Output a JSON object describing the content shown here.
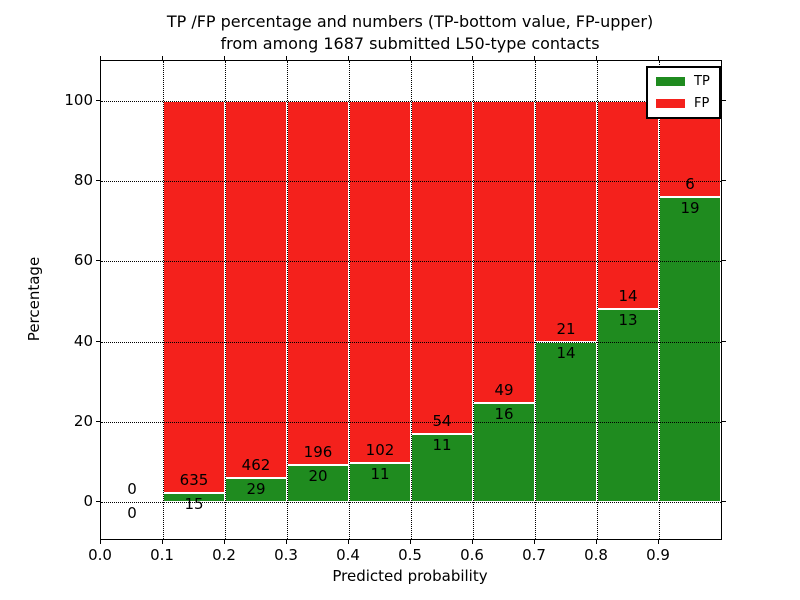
{
  "title": {
    "line1": "TP /FP percentage and numbers (TP-bottom value, FP-upper)",
    "line2": "from among 1687 submitted L50-type contacts"
  },
  "axes": {
    "xlabel": "Predicted probability",
    "ylabel": "Percentage",
    "x_tick_labels": [
      "0.0",
      "0.1",
      "0.2",
      "0.3",
      "0.4",
      "0.5",
      "0.6",
      "0.7",
      "0.8",
      "0.9"
    ],
    "x_tick_values": [
      0.0,
      0.1,
      0.2,
      0.3,
      0.4,
      0.5,
      0.6,
      0.7,
      0.8,
      0.9
    ],
    "y_tick_labels": [
      "0",
      "20",
      "40",
      "60",
      "80",
      "100"
    ],
    "y_tick_values": [
      0,
      20,
      40,
      60,
      80,
      100
    ]
  },
  "legend": {
    "position": "upper right",
    "items": [
      {
        "label": "TP",
        "color": "#1f8b1f"
      },
      {
        "label": "FP",
        "color": "#f4211c"
      }
    ]
  },
  "colors": {
    "tp": "#1f8b1f",
    "fp": "#f4211c",
    "grid": "#000000",
    "background": "#ffffff",
    "bar_edge": "#ffffff"
  },
  "chart_data": {
    "type": "bar",
    "stacked": true,
    "normalized_to": 100,
    "title": "TP /FP percentage and numbers (TP-bottom value, FP-upper) from among 1687 submitted L50-type contacts",
    "xlabel": "Predicted probability",
    "ylabel": "Percentage",
    "xlim": [
      0.0,
      1.0
    ],
    "ylim": [
      -9,
      110
    ],
    "grid": true,
    "grid_style": "dotted",
    "legend_position": "upper right",
    "total_contacts": 1687,
    "bins": [
      {
        "x0": 0.0,
        "x1": 0.1,
        "tp": 0,
        "fp": 0
      },
      {
        "x0": 0.1,
        "x1": 0.2,
        "tp": 15,
        "fp": 635
      },
      {
        "x0": 0.2,
        "x1": 0.3,
        "tp": 29,
        "fp": 462
      },
      {
        "x0": 0.3,
        "x1": 0.4,
        "tp": 20,
        "fp": 196
      },
      {
        "x0": 0.4,
        "x1": 0.5,
        "tp": 11,
        "fp": 102
      },
      {
        "x0": 0.5,
        "x1": 0.6,
        "tp": 11,
        "fp": 54
      },
      {
        "x0": 0.6,
        "x1": 0.7,
        "tp": 16,
        "fp": 49
      },
      {
        "x0": 0.7,
        "x1": 0.8,
        "tp": 14,
        "fp": 21
      },
      {
        "x0": 0.8,
        "x1": 0.9,
        "tp": 13,
        "fp": 14
      },
      {
        "x0": 0.9,
        "x1": 1.0,
        "tp": 19,
        "fp": 6
      }
    ],
    "series": [
      {
        "name": "TP",
        "counts": [
          0,
          15,
          29,
          20,
          11,
          11,
          16,
          14,
          13,
          19
        ]
      },
      {
        "name": "FP",
        "counts": [
          0,
          635,
          462,
          196,
          102,
          54,
          49,
          21,
          14,
          6
        ]
      }
    ],
    "tp_percent_of_bar": [
      0,
      2.31,
      5.91,
      9.26,
      9.73,
      16.92,
      24.62,
      40.0,
      48.15,
      76.0
    ]
  }
}
